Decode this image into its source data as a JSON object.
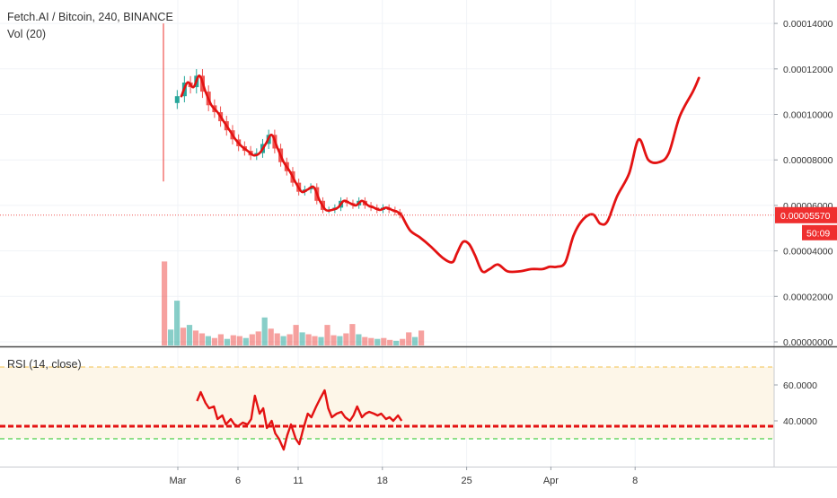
{
  "chart_data": {
    "type": "candlestick",
    "title": "Fetch.AI / Bitcoin, 240, BINANCE",
    "volume_label": "Vol (20)",
    "rsi_label": "RSI (14, close)",
    "price_axis": {
      "min": 0,
      "max": 0.00014,
      "tick_labels": [
        "0.00014000",
        "0.00012000",
        "0.00010000",
        "0.00008000",
        "0.00006000",
        "0.00004000",
        "0.00002000",
        "0.00000000"
      ],
      "tick_values": [
        0.00014,
        0.00012,
        0.0001,
        8e-05,
        6e-05,
        4e-05,
        2e-05,
        0
      ]
    },
    "rsi_axis": {
      "tick_labels": [
        "60.0000",
        "40.0000"
      ],
      "tick_values": [
        60,
        40
      ],
      "upper_band": 70,
      "lower_band": 30,
      "support_level": 37
    },
    "time_axis": {
      "tick_labels": [
        "Mar",
        "6",
        "11",
        "18",
        "25",
        "Apr",
        "8"
      ],
      "tick_day_index": [
        0,
        5,
        10,
        17,
        24,
        31,
        38
      ]
    },
    "current_price": {
      "label": "0.00005570",
      "value": 5.57e-05,
      "countdown": "50:09"
    },
    "price_close_series": {
      "day_index": [
        -0.4,
        0.3,
        0.8,
        1.3,
        1.8,
        2.3,
        2.8,
        3.3,
        3.8,
        4.3,
        4.8,
        5.3,
        5.8,
        6.3,
        6.8,
        7.3,
        7.8,
        8.3,
        8.8,
        9.3,
        9.8,
        10.3,
        10.8,
        11.3,
        11.8,
        12.3,
        12.8,
        13.3,
        13.8,
        14.3,
        14.8,
        15.3,
        15.8,
        16.3,
        16.8,
        17.3,
        17.8,
        18.3,
        18.6
      ],
      "values": [
        0.000105,
        0.000108,
        0.000114,
        0.000112,
        0.000117,
        0.00011,
        0.000104,
        0.000101,
        9.7e-05,
        9.3e-05,
        8.9e-05,
        8.6e-05,
        8.4e-05,
        8.2e-05,
        8.3e-05,
        8.7e-05,
        9.1e-05,
        8.5e-05,
        7.9e-05,
        7.5e-05,
        7e-05,
        6.6e-05,
        6.7e-05,
        6.8e-05,
        6.2e-05,
        5.8e-05,
        5.8e-05,
        5.9e-05,
        6.2e-05,
        6.1e-05,
        6e-05,
        6.2e-05,
        6e-05,
        5.9e-05,
        5.8e-05,
        5.9e-05,
        5.8e-05,
        5.7e-05,
        5.57e-05
      ]
    },
    "volume_series": {
      "max": 1e-05,
      "values": [
        9.0,
        1.7,
        4.8,
        1.9,
        2.2,
        1.6,
        1.3,
        1.0,
        0.8,
        1.2,
        0.7,
        1.1,
        1.0,
        0.8,
        1.2,
        1.5,
        3.0,
        1.8,
        1.3,
        1.0,
        1.2,
        2.2,
        1.4,
        1.2,
        1.0,
        0.9,
        2.2,
        1.1,
        1.0,
        1.3,
        2.3,
        1.2,
        0.9,
        0.8,
        0.7,
        0.8,
        0.6,
        0.5,
        0.7,
        1.4,
        0.9,
        1.6
      ]
    },
    "projection_series": {
      "day_index": [
        18.6,
        19.3,
        20.1,
        21.0,
        22.0,
        22.8,
        23.2,
        23.7,
        24.2,
        24.7,
        25.3,
        25.9,
        26.6,
        27.4,
        28.4,
        29.4,
        30.3,
        30.9,
        31.5,
        32.2,
        32.9,
        33.7,
        34.5,
        35.1,
        35.7,
        36.5,
        37.5,
        38.3,
        39.1,
        40.0,
        40.8,
        41.7,
        42.8,
        43.3
      ],
      "values": [
        5.57e-05,
        4.9e-05,
        4.6e-05,
        4.2e-05,
        3.7e-05,
        3.5e-05,
        3.9e-05,
        4.4e-05,
        4.3e-05,
        3.8e-05,
        3.1e-05,
        3.2e-05,
        3.4e-05,
        3.1e-05,
        3.1e-05,
        3.2e-05,
        3.2e-05,
        3.3e-05,
        3.3e-05,
        3.5e-05,
        4.7e-05,
        5.4e-05,
        5.6e-05,
        5.2e-05,
        5.3e-05,
        6.4e-05,
        7.4e-05,
        8.9e-05,
        8e-05,
        7.9e-05,
        8.3e-05,
        9.9e-05,
        0.00011,
        0.000116
      ]
    },
    "rsi_series": {
      "day_index": [
        1.6,
        1.9,
        2.3,
        2.6,
        3.0,
        3.3,
        3.7,
        4.0,
        4.4,
        4.7,
        5.0,
        5.4,
        5.8,
        6.1,
        6.4,
        6.8,
        7.1,
        7.4,
        7.8,
        8.1,
        8.4,
        8.8,
        9.1,
        9.4,
        9.8,
        10.1,
        10.4,
        10.8,
        11.1,
        11.5,
        11.8,
        12.2,
        12.5,
        12.8,
        13.2,
        13.6,
        13.9,
        14.3,
        14.6,
        14.9,
        15.3,
        15.6,
        15.9,
        16.3,
        16.6,
        16.9,
        17.3,
        17.6,
        17.9,
        18.3,
        18.6
      ],
      "values": [
        51,
        56,
        50,
        47,
        48,
        41,
        43,
        38,
        41,
        38,
        37,
        39,
        38,
        41,
        54,
        44,
        47,
        36,
        40,
        33,
        30,
        24,
        32,
        38,
        30,
        27,
        35,
        44,
        42,
        48,
        52,
        57,
        47,
        42,
        44,
        45,
        42,
        40,
        43,
        48,
        42,
        44,
        45,
        44,
        43,
        44,
        41,
        42,
        40,
        43,
        40
      ]
    },
    "colors": {
      "price_line": "#e31212",
      "projection": "#e31212",
      "rsi_line": "#e31212",
      "candle_up": "#26a69a",
      "candle_down": "#ef5350",
      "upper_band": "#f3c04d",
      "lower_band": "#21c421",
      "rsi_fill": "#fdf6e8",
      "axis_label": "#ef2f2f"
    }
  }
}
